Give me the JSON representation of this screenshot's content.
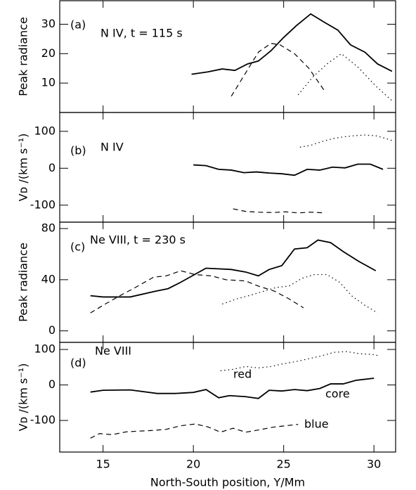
{
  "chart_data": [
    {
      "type": "line",
      "panel_label": "(a)",
      "annotation": "N IV,  t = 115 s",
      "ylabel": "Peak radiance",
      "xlim": [
        12.6,
        31.2
      ],
      "xticks": [
        15,
        20,
        25,
        30
      ],
      "ylim": [
        0,
        38
      ],
      "yticks": [
        10,
        20,
        30
      ],
      "series": [
        {
          "line_style": "solid",
          "color": "#000000",
          "x": [
            19.9,
            20.8,
            21.6,
            22.3,
            23.0,
            23.6,
            24.3,
            25.0,
            25.7,
            26.5,
            27.3,
            28.0,
            28.7,
            29.5,
            30.2,
            31.0
          ],
          "values": [
            13,
            13.8,
            14.8,
            14.3,
            16.5,
            17.5,
            21,
            25.5,
            29.5,
            33.5,
            30.5,
            28,
            23,
            20.5,
            16.5,
            14
          ]
        },
        {
          "line_style": "dashed",
          "color": "#000000",
          "x": [
            22.1,
            22.9,
            23.6,
            24.3,
            24.8,
            25.6,
            26.4,
            27.3
          ],
          "values": [
            5.5,
            13.5,
            20.5,
            23.5,
            23,
            20,
            15,
            7
          ]
        },
        {
          "line_style": "dotted",
          "color": "#000000",
          "x": [
            25.8,
            26.6,
            27.4,
            28.2,
            29.1,
            30.1,
            31.0
          ],
          "values": [
            6,
            12,
            16.5,
            20,
            15.5,
            9,
            4
          ]
        }
      ]
    },
    {
      "type": "line",
      "panel_label": "(b)",
      "annotation": "N IV",
      "ylabel": "Vᴅ /(km s⁻¹)",
      "xlim": [
        12.6,
        31.2
      ],
      "xticks": [
        15,
        20,
        25,
        30
      ],
      "ylim": [
        -146,
        151
      ],
      "yticks": [
        -100,
        0,
        100
      ],
      "series": [
        {
          "line_style": "solid",
          "color": "#000000",
          "x": [
            20.0,
            20.7,
            21.4,
            22.1,
            22.8,
            23.5,
            24.2,
            24.9,
            25.6,
            26.3,
            27.0,
            27.7,
            28.4,
            29.1,
            29.8,
            30.5
          ],
          "values": [
            9,
            7,
            -3,
            -5,
            -12,
            -10,
            -13,
            -15,
            -19,
            -3,
            -5,
            3,
            1,
            11,
            11,
            -3
          ]
        },
        {
          "line_style": "dashed",
          "color": "#000000",
          "x": [
            22.2,
            22.9,
            23.6,
            24.4,
            25.1,
            25.8,
            26.5,
            27.3
          ],
          "values": [
            -110,
            -117,
            -119,
            -120,
            -118,
            -121,
            -119,
            -121
          ]
        },
        {
          "line_style": "dotted",
          "color": "#000000",
          "x": [
            25.9,
            26.5,
            27.1,
            27.7,
            28.3,
            28.9,
            29.5,
            30.1,
            30.7,
            31.0
          ],
          "values": [
            57,
            62,
            72,
            80,
            85,
            88,
            90,
            88,
            80,
            75
          ]
        }
      ]
    },
    {
      "type": "line",
      "panel_label": "(c)",
      "annotation": "Ne VIII,  t = 230 s",
      "ylabel": "Peak radiance",
      "xlim": [
        12.6,
        31.2
      ],
      "xticks": [
        15,
        20,
        25,
        30
      ],
      "ylim": [
        -9,
        85
      ],
      "yticks": [
        0,
        40,
        80
      ],
      "series": [
        {
          "line_style": "solid",
          "color": "#000000",
          "x": [
            14.3,
            15.0,
            16.5,
            17.9,
            18.6,
            19.3,
            20.7,
            22.1,
            22.9,
            23.6,
            24.2,
            24.9,
            25.6,
            26.3,
            26.9,
            27.6,
            28.3,
            29.2,
            30.1
          ],
          "values": [
            27.5,
            26.5,
            26.5,
            31,
            33,
            38,
            49,
            48,
            46,
            43,
            48,
            51,
            64,
            65,
            71,
            69,
            62,
            54,
            47
          ]
        },
        {
          "line_style": "dashed",
          "color": "#000000",
          "x": [
            14.3,
            15.0,
            16.0,
            16.8,
            17.8,
            18.5,
            19.3,
            20.1,
            21.0,
            21.8,
            22.9,
            23.6,
            24.5,
            25.3,
            26.1
          ],
          "values": [
            14,
            20,
            28,
            34,
            42,
            43,
            47,
            44,
            43,
            40,
            39,
            35,
            31,
            25,
            18
          ]
        },
        {
          "line_style": "dotted",
          "color": "#000000",
          "x": [
            21.6,
            22.4,
            23.2,
            23.9,
            24.6,
            25.3,
            26.0,
            26.7,
            27.4,
            28.1,
            28.8,
            29.5,
            30.2
          ],
          "values": [
            21,
            25,
            28,
            31,
            34,
            35,
            41,
            44,
            44,
            38,
            27,
            20,
            14
          ]
        }
      ]
    },
    {
      "type": "line",
      "panel_label": "(d)",
      "annotation": "Ne VIII",
      "ylabel": "Vᴅ /(km s⁻¹)",
      "xlabel": "North-South position, Y/Mm",
      "xlim": [
        12.6,
        31.2
      ],
      "xticks": [
        15,
        20,
        25,
        30
      ],
      "ylim": [
        -189,
        120
      ],
      "yticks": [
        -100,
        0,
        100
      ],
      "series": [
        {
          "name": "red",
          "line_style": "dotted",
          "color": "#000000",
          "x": [
            21.5,
            22.2,
            22.9,
            23.6,
            24.3,
            25.0,
            25.7,
            26.4,
            27.1,
            27.8,
            28.5,
            29.2,
            29.9,
            30.3
          ],
          "values": [
            40,
            44,
            52,
            48,
            52,
            60,
            66,
            74,
            82,
            92,
            94,
            88,
            86,
            82
          ]
        },
        {
          "name": "core",
          "line_style": "solid",
          "color": "#000000",
          "x": [
            14.3,
            15.0,
            16.5,
            18.0,
            19.0,
            20.0,
            20.7,
            21.4,
            22.0,
            22.9,
            23.6,
            24.2,
            24.9,
            25.6,
            26.3,
            27.0,
            27.6,
            28.3,
            29.0,
            30.0
          ],
          "values": [
            -20,
            -15,
            -14,
            -24,
            -24,
            -21,
            -13,
            -36,
            -30,
            -33,
            -38,
            -15,
            -17,
            -13,
            -16,
            -10,
            3,
            3,
            13,
            19
          ]
        },
        {
          "name": "blue",
          "line_style": "dashed",
          "color": "#000000",
          "x": [
            14.3,
            14.8,
            15.5,
            16.3,
            17.0,
            17.8,
            18.5,
            19.3,
            20.1,
            20.8,
            21.5,
            22.2,
            22.9,
            23.6,
            24.4,
            25.1,
            25.8
          ],
          "values": [
            -150,
            -137,
            -140,
            -132,
            -130,
            -128,
            -125,
            -115,
            -110,
            -118,
            -133,
            -122,
            -133,
            -127,
            -119,
            -115,
            -111
          ]
        }
      ]
    }
  ]
}
